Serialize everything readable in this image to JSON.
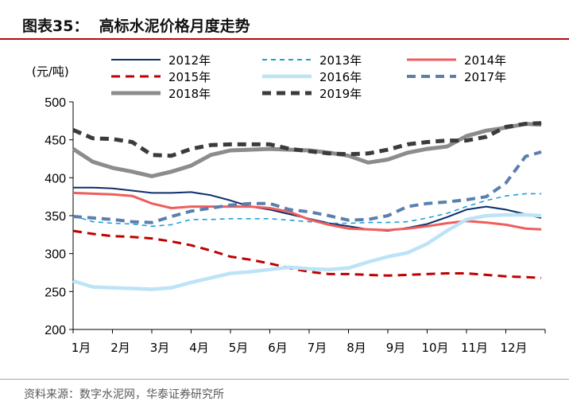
{
  "figure": {
    "title": "图表35：  高标水泥价格月度走势",
    "source": "资料来源：数字水泥网，华泰证券研究所"
  },
  "chart_data": {
    "type": "line",
    "unit_label": "(元/吨)",
    "x_ticks": [
      "1月",
      "2月",
      "3月",
      "4月",
      "5月",
      "6月",
      "7月",
      "8月",
      "9月",
      "10月",
      "11月",
      "12月"
    ],
    "ylim": [
      200,
      500
    ],
    "y_ticks": [
      200,
      250,
      300,
      350,
      400,
      450,
      500
    ],
    "xlim": [
      1,
      13
    ],
    "grid": false,
    "legend_position": "top",
    "series": [
      {
        "name": "2012年",
        "color": "#0d2f6b",
        "dash": "solid",
        "width": 2,
        "x": [
          1,
          1.5,
          2,
          2.5,
          3,
          3.5,
          4,
          4.5,
          5,
          5.5,
          6,
          6.5,
          7,
          7.5,
          8,
          8.5,
          9,
          9.5,
          10,
          10.5,
          11,
          11.5,
          12,
          12.5,
          12.9
        ],
        "y": [
          387,
          387,
          386,
          383,
          380,
          380,
          381,
          377,
          370,
          362,
          358,
          352,
          346,
          340,
          336,
          332,
          330,
          334,
          339,
          348,
          358,
          362,
          358,
          352,
          347
        ]
      },
      {
        "name": "2013年",
        "color": "#1f9fd8",
        "dash": "dashed-short",
        "width": 1.6,
        "x": [
          1,
          1.5,
          2,
          2.5,
          3,
          3.5,
          4,
          4.5,
          5,
          5.5,
          6,
          6.5,
          7,
          7.5,
          8,
          8.5,
          9,
          9.5,
          10,
          10.5,
          11,
          11.5,
          12,
          12.5,
          12.9
        ],
        "y": [
          350,
          342,
          340,
          339,
          336,
          338,
          345,
          345,
          346,
          346,
          346,
          344,
          342,
          340,
          340,
          341,
          341,
          342,
          347,
          353,
          362,
          370,
          376,
          379,
          379
        ]
      },
      {
        "name": "2014年",
        "color": "#ef5d5d",
        "dash": "solid",
        "width": 3,
        "x": [
          1,
          1.5,
          2,
          2.5,
          3,
          3.5,
          4,
          4.5,
          5,
          5.5,
          6,
          6.5,
          7,
          7.5,
          8,
          8.5,
          9,
          9.5,
          10,
          10.5,
          11,
          11.5,
          12,
          12.5,
          12.9
        ],
        "y": [
          380,
          379,
          378,
          376,
          366,
          360,
          362,
          362,
          362,
          362,
          360,
          355,
          345,
          338,
          333,
          332,
          331,
          333,
          336,
          340,
          343,
          341,
          338,
          333,
          332
        ]
      },
      {
        "name": "2015年",
        "color": "#c00000",
        "dash": "dashed",
        "width": 3,
        "x": [
          1,
          1.5,
          2,
          2.5,
          3,
          3.5,
          4,
          4.5,
          5,
          5.5,
          6,
          6.5,
          7,
          7.5,
          8,
          8.5,
          9,
          9.5,
          10,
          10.5,
          11,
          11.5,
          12,
          12.5,
          12.9
        ],
        "y": [
          330,
          326,
          323,
          322,
          320,
          316,
          311,
          304,
          296,
          292,
          287,
          281,
          276,
          273,
          273,
          272,
          271,
          272,
          273,
          274,
          274,
          272,
          270,
          269,
          268
        ]
      },
      {
        "name": "2016年",
        "color": "#bde3f6",
        "dash": "solid",
        "width": 4.5,
        "x": [
          1,
          1.5,
          2,
          2.5,
          3,
          3.5,
          4,
          4.5,
          5,
          5.5,
          6,
          6.5,
          7,
          7.5,
          8,
          8.5,
          9,
          9.5,
          10,
          10.5,
          11,
          11.5,
          12,
          12.5,
          12.9
        ],
        "y": [
          264,
          256,
          255,
          254,
          253,
          255,
          262,
          268,
          274,
          276,
          279,
          282,
          280,
          279,
          281,
          289,
          296,
          301,
          313,
          330,
          345,
          350,
          351,
          351,
          350
        ]
      },
      {
        "name": "2017年",
        "color": "#5b7fad",
        "dash": "dashed",
        "width": 4,
        "x": [
          1,
          1.5,
          2,
          2.5,
          3,
          3.5,
          4,
          4.5,
          5,
          5.5,
          6,
          6.5,
          7,
          7.5,
          8,
          8.5,
          9,
          9.5,
          10,
          10.5,
          11,
          11.5,
          12,
          12.5,
          12.9
        ],
        "y": [
          349,
          347,
          345,
          342,
          341,
          349,
          356,
          360,
          364,
          366,
          366,
          358,
          355,
          350,
          344,
          345,
          350,
          362,
          366,
          368,
          371,
          375,
          393,
          428,
          434
        ]
      },
      {
        "name": "2018年",
        "color": "#8c8c8c",
        "dash": "solid",
        "width": 5,
        "x": [
          1,
          1.5,
          2,
          2.5,
          3,
          3.5,
          4,
          4.5,
          5,
          5.5,
          6,
          6.5,
          7,
          7.5,
          8,
          8.5,
          9,
          9.5,
          10,
          10.5,
          11,
          11.5,
          12,
          12.5,
          12.9
        ],
        "y": [
          438,
          421,
          413,
          408,
          402,
          408,
          416,
          430,
          436,
          437,
          438,
          437,
          436,
          433,
          429,
          420,
          424,
          433,
          438,
          441,
          455,
          462,
          466,
          471,
          470
        ]
      },
      {
        "name": "2019年",
        "color": "#3b3b3b",
        "dash": "dashed",
        "width": 5,
        "x": [
          1,
          1.5,
          2,
          2.5,
          3,
          3.5,
          4,
          4.5,
          5,
          5.5,
          6,
          6.5,
          7,
          7.5,
          8,
          8.5,
          9,
          9.5,
          10,
          10.5,
          11,
          11.5,
          12,
          12.5,
          12.9
        ],
        "y": [
          463,
          452,
          451,
          447,
          430,
          429,
          438,
          443,
          444,
          444,
          444,
          438,
          435,
          432,
          431,
          432,
          437,
          444,
          447,
          449,
          449,
          454,
          467,
          471,
          472
        ]
      }
    ]
  }
}
